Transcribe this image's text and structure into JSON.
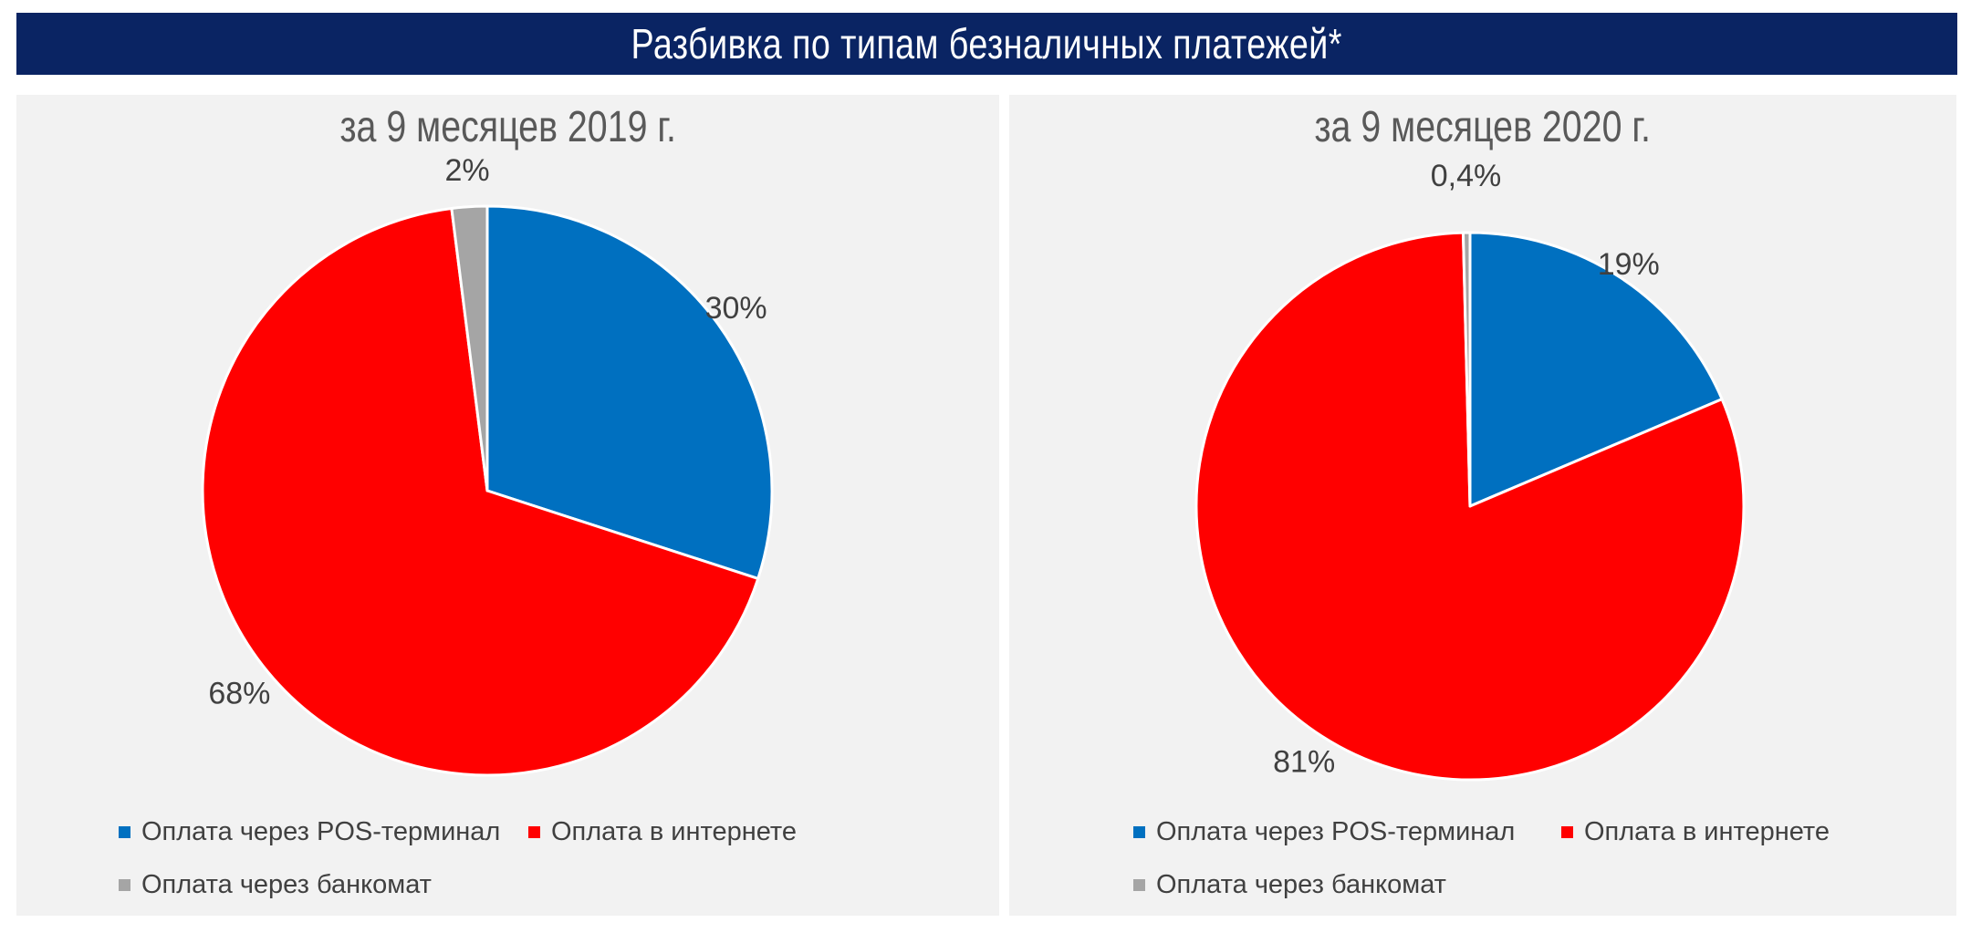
{
  "header": {
    "title": "Разбивка по типам безналичных платежей*"
  },
  "colors": {
    "banner": "#0a2463",
    "pos": "#0070c0",
    "internet": "#ff0000",
    "atm": "#a5a5a5"
  },
  "chart_data": [
    {
      "type": "pie",
      "title": "за 9 месяцев 2019 г.",
      "slices": [
        {
          "name": "Оплата через POS-терминал",
          "value": 30,
          "label": "30%",
          "color": "#0070c0"
        },
        {
          "name": "Оплата в интернете",
          "value": 68,
          "label": "68%",
          "color": "#ff0000"
        },
        {
          "name": "Оплата через банкомат",
          "value": 2,
          "label": "2%",
          "color": "#a5a5a5"
        }
      ],
      "legend": [
        "Оплата через POS-терминал",
        "Оплата в интернете",
        "Оплата через банкомат"
      ],
      "legend_position": "bottom"
    },
    {
      "type": "pie",
      "title": "за 9 месяцев 2020 г.",
      "slices": [
        {
          "name": "Оплата через POS-терминал",
          "value": 18.6,
          "label": "19%",
          "color": "#0070c0"
        },
        {
          "name": "Оплата в интернете",
          "value": 81,
          "label": "81%",
          "color": "#ff0000"
        },
        {
          "name": "Оплата через банкомат",
          "value": 0.4,
          "label": "0,4%",
          "color": "#a5a5a5"
        }
      ],
      "legend": [
        "Оплата через POS-терминал",
        "Оплата в интернете",
        "Оплата через банкомат"
      ],
      "legend_position": "bottom"
    }
  ]
}
